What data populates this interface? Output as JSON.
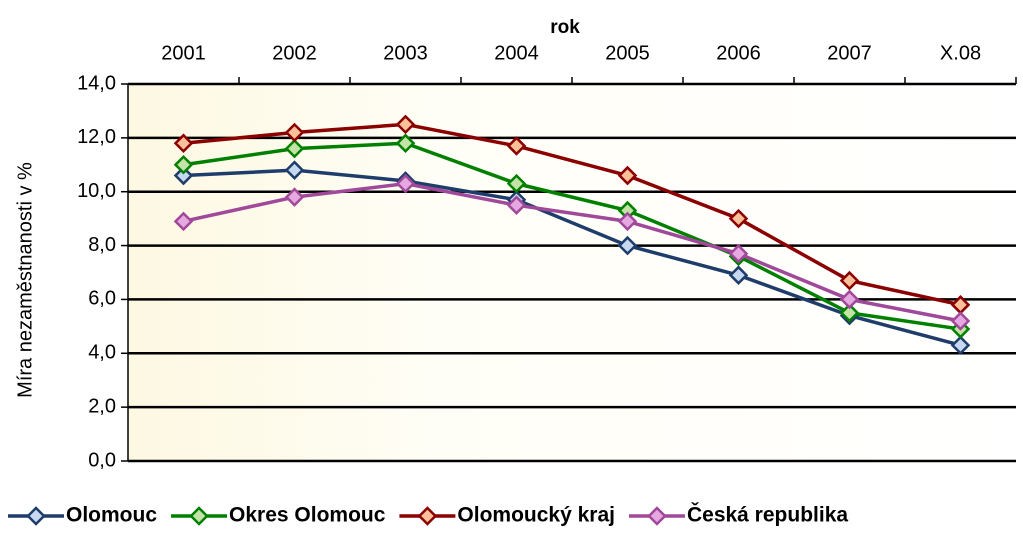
{
  "chart_data": {
    "type": "line",
    "x_label": "rok",
    "y_label": "Míra nezaměstnanosti v %",
    "categories": [
      "2001",
      "2002",
      "2003",
      "2004",
      "2005",
      "2006",
      "2007",
      "X.08"
    ],
    "series": [
      {
        "name": "Olomouc",
        "color": "#1f3d6b",
        "marker_fill": "#c6d9f1",
        "values": [
          10.6,
          10.8,
          10.4,
          9.7,
          8.0,
          6.9,
          5.4,
          4.3
        ]
      },
      {
        "name": "Okres Olomouc",
        "color": "#008000",
        "marker_fill": "#c4e3a6",
        "values": [
          11.0,
          11.6,
          11.8,
          10.3,
          9.3,
          7.6,
          5.5,
          4.9
        ]
      },
      {
        "name": "Olomoucký kraj",
        "color": "#8b0000",
        "marker_fill": "#f9c09a",
        "values": [
          11.8,
          12.2,
          12.5,
          11.7,
          10.6,
          9.0,
          6.7,
          5.8
        ]
      },
      {
        "name": "Česká republika",
        "color": "#a0489a",
        "marker_fill": "#e6a8e0",
        "values": [
          8.9,
          9.8,
          10.3,
          9.5,
          8.9,
          7.7,
          6.0,
          5.2
        ]
      }
    ],
    "ylim": [
      0,
      14
    ],
    "yticks": [
      {
        "value": 0,
        "label": "0,0"
      },
      {
        "value": 2,
        "label": "2,0"
      },
      {
        "value": 4,
        "label": "4,0"
      },
      {
        "value": 6,
        "label": "6,0"
      },
      {
        "value": 8,
        "label": "8,0"
      },
      {
        "value": 10,
        "label": "10,0"
      },
      {
        "value": 12,
        "label": "12,0"
      },
      {
        "value": 14,
        "label": "14,0"
      }
    ],
    "grid": true
  }
}
